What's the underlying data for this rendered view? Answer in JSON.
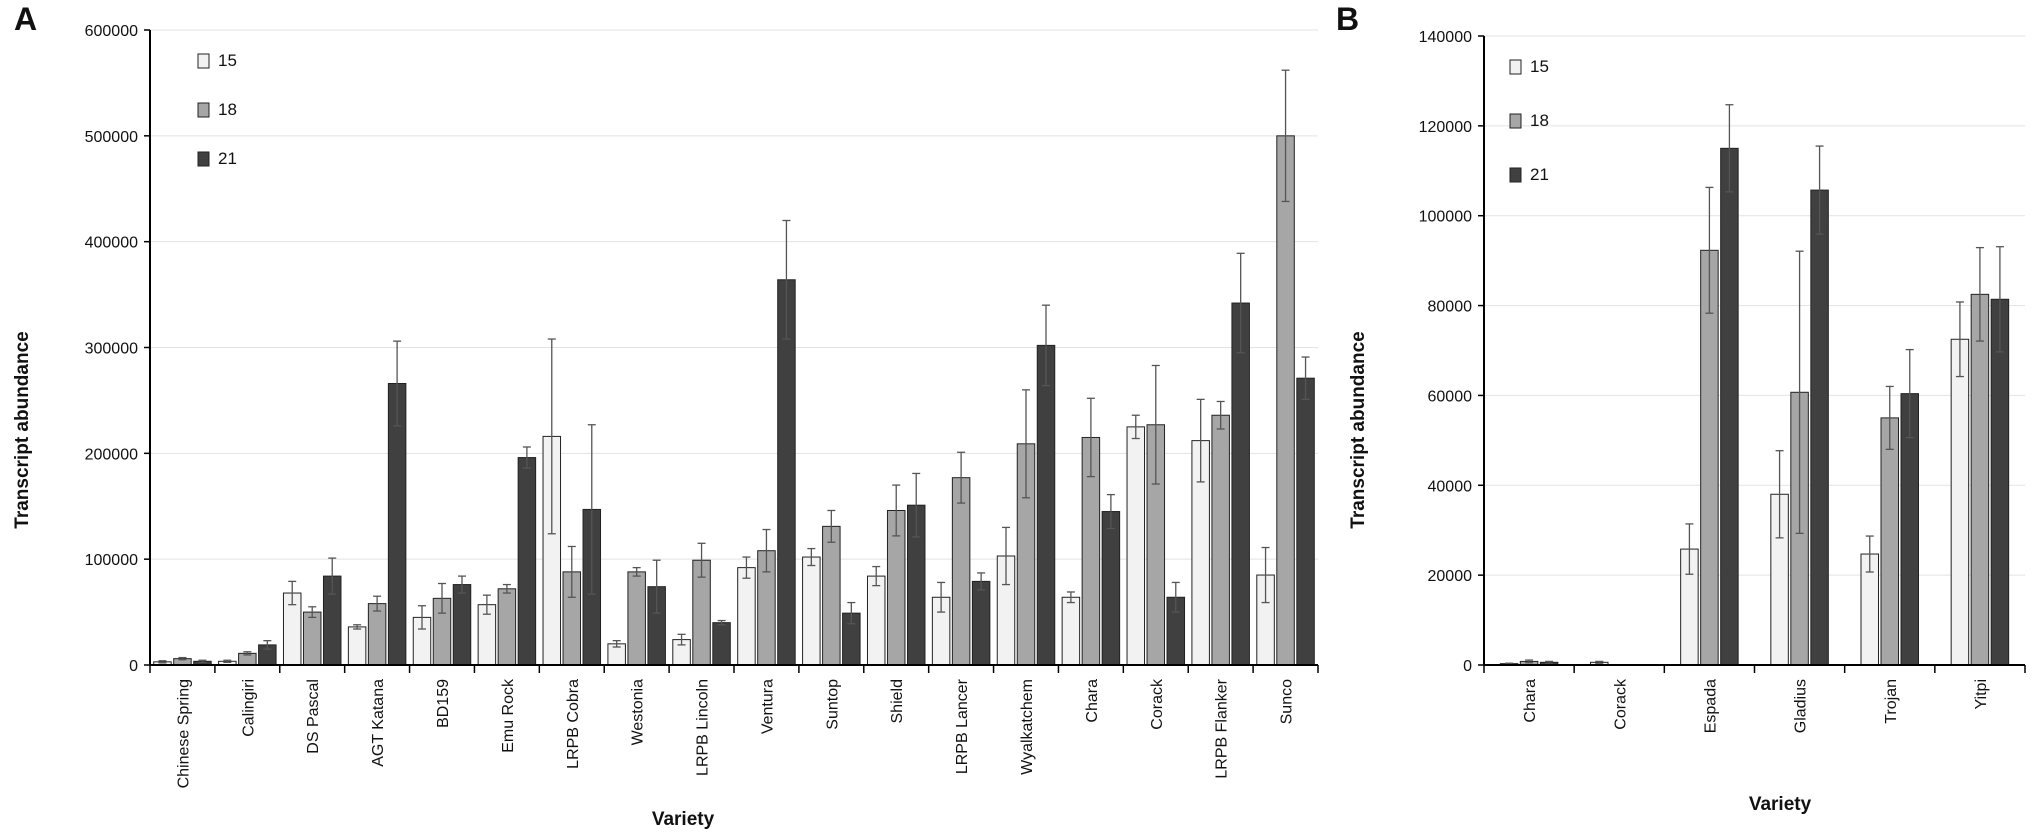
{
  "chart_data": [
    {
      "type": "bar",
      "panel_label": "A",
      "xlabel": "Variety",
      "ylabel": "Transcript abundance",
      "ylim": [
        0,
        600000
      ],
      "yticks": [
        "0",
        "100000",
        "200000",
        "300000",
        "400000",
        "500000",
        "600000"
      ],
      "legend_placement": "top-left",
      "grid": true,
      "categories": [
        "Chinese Spring",
        "Calingiri",
        "DS Pascal",
        "AGT Katana",
        "BD159",
        "Emu Rock",
        "LRPB Cobra",
        "Westonia",
        "LRPB Lincoln",
        "Ventura",
        "Suntop",
        "Shield",
        "LRPB Lancer",
        "Wyalkatchem",
        "Chara",
        "Corack",
        "LRPB Flanker",
        "Sunco"
      ],
      "series": [
        {
          "name": "15",
          "color": "#f2f2f2",
          "values": [
            3000,
            3500,
            68000,
            36000,
            45000,
            57000,
            216000,
            20000,
            24000,
            92000,
            102000,
            84000,
            64000,
            103000,
            64000,
            225000,
            212000,
            85000
          ],
          "errors": [
            1000,
            1000,
            11000,
            2000,
            11000,
            9000,
            92000,
            3000,
            5000,
            10000,
            8000,
            9000,
            14000,
            27000,
            5000,
            11000,
            39000,
            26000
          ]
        },
        {
          "name": "18",
          "color": "#a6a6a6",
          "values": [
            6000,
            11000,
            50000,
            58000,
            63000,
            72000,
            88000,
            88000,
            99000,
            108000,
            131000,
            146000,
            177000,
            209000,
            215000,
            227000,
            236000,
            500000
          ],
          "errors": [
            1000,
            1500,
            5000,
            7000,
            14000,
            4000,
            24000,
            4000,
            16000,
            20000,
            15000,
            24000,
            24000,
            51000,
            37000,
            56000,
            13000,
            62000
          ]
        },
        {
          "name": "21",
          "color": "#404040",
          "values": [
            3500,
            19000,
            84000,
            266000,
            76000,
            196000,
            147000,
            74000,
            40000,
            364000,
            49000,
            151000,
            79000,
            302000,
            145000,
            64000,
            342000,
            271000
          ],
          "errors": [
            1000,
            4000,
            17000,
            40000,
            8000,
            10000,
            80000,
            25000,
            2000,
            56000,
            10000,
            30000,
            8000,
            38000,
            16000,
            14000,
            47000,
            20000
          ]
        }
      ]
    },
    {
      "type": "bar",
      "panel_label": "B",
      "xlabel": "Variety",
      "ylabel": "Transcript abundance",
      "ylim": [
        0,
        140000
      ],
      "yticks": [
        "0",
        "20000",
        "40000",
        "60000",
        "80000",
        "100000",
        "120000",
        "140000"
      ],
      "legend_placement": "top-left",
      "grid": true,
      "categories": [
        "Chara",
        "Corack",
        "Espada",
        "Gladius",
        "Trojan",
        "Yitpi"
      ],
      "series": [
        {
          "name": "15",
          "color": "#f2f2f2",
          "values": [
            300,
            600,
            25800,
            38000,
            24700,
            72500
          ],
          "errors": [
            100,
            200,
            5600,
            9700,
            4000,
            8300
          ]
        },
        {
          "name": "18",
          "color": "#a6a6a6",
          "values": [
            800,
            0,
            92300,
            60700,
            55000,
            82500
          ],
          "errors": [
            300,
            0,
            14000,
            31400,
            7000,
            10400
          ]
        },
        {
          "name": "21",
          "color": "#404040",
          "values": [
            600,
            0,
            115000,
            105700,
            60400,
            81400
          ],
          "errors": [
            200,
            0,
            9700,
            9800,
            9800,
            11700
          ]
        }
      ]
    }
  ]
}
